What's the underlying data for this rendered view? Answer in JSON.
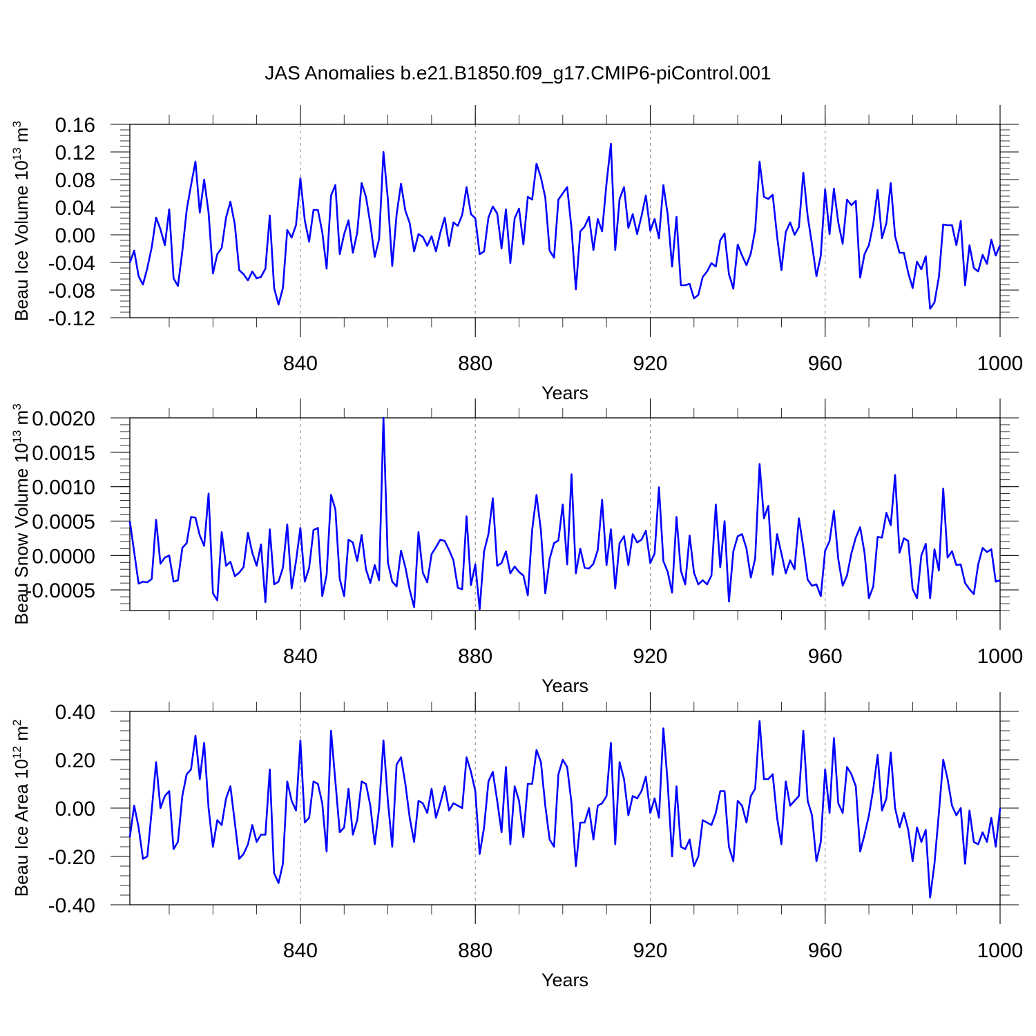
{
  "figure_title": "JAS Anomalies b.e21.B1850.f09_g17.CMIP6-piControl.001",
  "colors": {
    "line": "#0000ff",
    "axis": "#000000",
    "grid": "#808080",
    "background": "#ffffff"
  },
  "chart_data": [
    {
      "type": "line",
      "title": "JAS Anomalies b.e21.B1850.f09_g17.CMIP6-piControl.001",
      "xlabel": "Years",
      "ylabel_text": "Beau Ice Volume 10",
      "ylabel_exp": "13",
      "ylabel_unit": " m",
      "ylabel_unit_exp": "3",
      "xlim": [
        801,
        1000
      ],
      "ylim": [
        -0.12,
        0.16
      ],
      "xticks": [
        840,
        880,
        920,
        960,
        1000
      ],
      "xtick_labels": [
        "840",
        "880",
        "920",
        "960",
        "1000"
      ],
      "yticks": [
        -0.12,
        -0.08,
        -0.04,
        0.0,
        0.04,
        0.08,
        0.12,
        0.16
      ],
      "ytick_labels": [
        "-0.12",
        "-0.08",
        "-0.04",
        "0.00",
        "0.04",
        "0.08",
        "0.12",
        "0.16"
      ],
      "x_start": 801,
      "values": [
        -0.04,
        -0.023,
        -0.06,
        -0.072,
        -0.048,
        -0.018,
        0.025,
        0.008,
        -0.015,
        0.037,
        -0.063,
        -0.074,
        -0.024,
        0.036,
        0.072,
        0.106,
        0.032,
        0.08,
        0.032,
        -0.056,
        -0.028,
        -0.019,
        0.025,
        0.048,
        0.015,
        -0.051,
        -0.057,
        -0.066,
        -0.053,
        -0.063,
        -0.061,
        -0.049,
        0.028,
        -0.077,
        -0.101,
        -0.077,
        0.007,
        -0.004,
        0.014,
        0.082,
        0.021,
        -0.01,
        0.036,
        0.036,
        0.004,
        -0.049,
        0.057,
        0.072,
        -0.028,
        0.001,
        0.021,
        -0.026,
        0.003,
        0.075,
        0.055,
        0.016,
        -0.032,
        -0.006,
        0.12,
        0.051,
        -0.045,
        0.029,
        0.074,
        0.035,
        0.017,
        -0.024,
        0.001,
        -0.003,
        -0.016,
        -0.002,
        -0.024,
        0.003,
        0.025,
        -0.016,
        0.018,
        0.013,
        0.029,
        0.069,
        0.03,
        0.024,
        -0.028,
        -0.024,
        0.025,
        0.041,
        0.031,
        -0.02,
        0.037,
        -0.041,
        0.024,
        0.038,
        -0.014,
        0.055,
        0.051,
        0.103,
        0.083,
        0.054,
        -0.023,
        -0.033,
        0.051,
        0.06,
        0.069,
        0.009,
        -0.079,
        0.005,
        0.012,
        0.026,
        -0.022,
        0.023,
        0.005,
        0.075,
        0.132,
        -0.022,
        0.052,
        0.069,
        0.01,
        0.03,
        0.001,
        0.027,
        0.057,
        0.006,
        0.023,
        -0.005,
        0.072,
        0.029,
        -0.046,
        0.026,
        -0.073,
        -0.073,
        -0.071,
        -0.092,
        -0.087,
        -0.061,
        -0.053,
        -0.041,
        -0.046,
        -0.008,
        0.002,
        -0.057,
        -0.078,
        -0.014,
        -0.03,
        -0.044,
        -0.027,
        0.007,
        0.106,
        0.055,
        0.052,
        0.058,
        -0.002,
        -0.051,
        0.004,
        0.018,
        0.0,
        0.011,
        0.09,
        0.027,
        -0.014,
        -0.06,
        -0.03,
        0.066,
        0.001,
        0.067,
        0.018,
        -0.013,
        0.051,
        0.043,
        0.049,
        -0.062,
        -0.028,
        -0.015,
        0.016,
        0.065,
        -0.005,
        0.017,
        0.075,
        -0.002,
        -0.026,
        -0.026,
        -0.055,
        -0.077,
        -0.039,
        -0.05,
        -0.031,
        -0.107,
        -0.098,
        -0.061,
        0.015,
        0.014,
        0.014,
        -0.015,
        0.02,
        -0.073,
        -0.015,
        -0.048,
        -0.053,
        -0.029,
        -0.042,
        -0.007,
        -0.03,
        -0.015
      ]
    },
    {
      "type": "line",
      "title": "",
      "xlabel": "Years",
      "ylabel_text": "Beau Snow Volume 10",
      "ylabel_exp": "13",
      "ylabel_unit": " m",
      "ylabel_unit_exp": "3",
      "xlim": [
        801,
        1000
      ],
      "ylim": [
        -0.0008,
        0.002
      ],
      "xticks": [
        840,
        880,
        920,
        960,
        1000
      ],
      "xtick_labels": [
        "840",
        "880",
        "920",
        "960",
        "1000"
      ],
      "yticks": [
        -0.0005,
        0.0,
        0.0005,
        0.001,
        0.0015,
        0.002
      ],
      "ytick_labels": [
        "-0.0005",
        "0.0000",
        "0.0005",
        "0.0010",
        "0.0015",
        "0.0020"
      ],
      "x_start": 801,
      "values": [
        0.0005,
        5e-05,
        -0.00041,
        -0.00038,
        -0.00039,
        -0.00034,
        0.00052,
        -0.00012,
        -3e-05,
        0.0,
        -0.00038,
        -0.00036,
        0.00011,
        0.00018,
        0.00056,
        0.00055,
        0.00029,
        0.00014,
        0.0009,
        -0.00055,
        -0.00065,
        0.00034,
        -0.00015,
        -9e-05,
        -0.0003,
        -0.00025,
        -0.00017,
        0.00033,
        4e-05,
        -0.00015,
        0.00016,
        -0.00068,
        0.00038,
        -0.00042,
        -0.00038,
        -0.00018,
        0.00045,
        -0.00048,
        -8e-05,
        0.0004,
        -0.00038,
        -0.00018,
        0.00037,
        0.0004,
        -0.00059,
        -0.00028,
        0.00088,
        0.00067,
        -0.00034,
        -0.00059,
        0.00023,
        0.00019,
        -8e-05,
        0.0003,
        -0.0002,
        -0.0004,
        -0.00014,
        -0.00036,
        0.002,
        -0.0001,
        -0.00038,
        -0.00045,
        7e-05,
        -0.00017,
        -0.0005,
        -0.00075,
        0.00034,
        -0.00025,
        -0.00039,
        2e-05,
        0.00012,
        0.00023,
        0.00021,
        8e-05,
        -7e-05,
        -0.00047,
        -0.00049,
        0.00057,
        -0.00043,
        -0.00013,
        -0.00078,
        6e-05,
        0.00031,
        0.00083,
        -0.00015,
        -0.00011,
        6e-05,
        -0.00026,
        -0.00016,
        -0.00024,
        -0.00029,
        -0.00058,
        0.00037,
        0.00088,
        0.00036,
        -0.00055,
        -5e-05,
        0.00018,
        0.00022,
        0.00074,
        -0.00013,
        0.00118,
        -0.00026,
        0.0001,
        -0.00018,
        -0.00019,
        -0.00012,
        8e-05,
        0.00081,
        -0.00014,
        0.00038,
        -0.00048,
        0.00018,
        0.00028,
        -0.00014,
        0.00031,
        0.00019,
        0.00023,
        0.00036,
        -0.00011,
        3e-05,
        0.00099,
        -8e-05,
        -0.00024,
        -0.00054,
        0.00056,
        -0.00022,
        -0.00042,
        0.00029,
        -0.00025,
        -0.00042,
        -0.00036,
        -0.00042,
        -0.00029,
        0.00074,
        -0.00017,
        0.0005,
        -0.00067,
        6e-05,
        0.00028,
        0.00031,
        0.0001,
        -0.00032,
        -4e-05,
        0.00133,
        0.00054,
        0.00072,
        -0.00028,
        0.00031,
        3e-05,
        -0.00026,
        -7e-05,
        -0.0002,
        0.00054,
        0.00012,
        -0.00035,
        -0.00044,
        -0.00042,
        -0.00059,
        7e-05,
        0.00021,
        0.00065,
        -5e-05,
        -0.00044,
        -0.00029,
        3e-05,
        0.00026,
        0.00041,
        4e-05,
        -0.00062,
        -0.00045,
        0.00027,
        0.00026,
        0.00062,
        0.00044,
        0.00117,
        4e-05,
        0.00025,
        0.00021,
        -0.00049,
        -0.00062,
        0.0,
        0.00017,
        -0.00062,
        9e-05,
        -0.00022,
        0.00097,
        -3e-05,
        6e-05,
        -0.00014,
        -0.00013,
        -0.0004,
        -0.00049,
        -0.00056,
        -0.00013,
        0.00011,
        5e-05,
        9e-05,
        -0.00038,
        -0.00036
      ]
    },
    {
      "type": "line",
      "title": "",
      "xlabel": "Years",
      "ylabel_text": "Beau Ice Area 10",
      "ylabel_exp": "12",
      "ylabel_unit": " m",
      "ylabel_unit_exp": "2",
      "xlim": [
        801,
        1000
      ],
      "ylim": [
        -0.4,
        0.4
      ],
      "xticks": [
        840,
        880,
        920,
        960,
        1000
      ],
      "xtick_labels": [
        "840",
        "880",
        "920",
        "960",
        "1000"
      ],
      "yticks": [
        -0.4,
        -0.2,
        0.0,
        0.2,
        0.4
      ],
      "ytick_labels": [
        "-0.40",
        "-0.20",
        "0.00",
        "0.20",
        "0.40"
      ],
      "x_start": 801,
      "values": [
        -0.12,
        0.01,
        -0.08,
        -0.21,
        -0.2,
        -0.01,
        0.19,
        0.0,
        0.05,
        0.07,
        -0.17,
        -0.14,
        0.05,
        0.14,
        0.16,
        0.3,
        0.12,
        0.27,
        0.0,
        -0.16,
        -0.05,
        -0.07,
        0.04,
        0.09,
        -0.06,
        -0.21,
        -0.19,
        -0.15,
        -0.07,
        -0.14,
        -0.11,
        -0.11,
        0.16,
        -0.27,
        -0.31,
        -0.23,
        0.11,
        0.03,
        -0.01,
        0.28,
        -0.06,
        -0.04,
        0.11,
        0.1,
        0.02,
        -0.18,
        0.32,
        0.11,
        -0.1,
        -0.08,
        0.08,
        -0.11,
        -0.05,
        0.11,
        0.1,
        0.01,
        -0.15,
        0.0,
        0.28,
        0.03,
        -0.16,
        0.18,
        0.21,
        0.1,
        -0.04,
        -0.14,
        0.03,
        0.02,
        -0.02,
        0.08,
        -0.04,
        0.02,
        0.09,
        -0.01,
        0.02,
        0.01,
        0.0,
        0.21,
        0.15,
        0.07,
        -0.19,
        -0.08,
        0.11,
        0.15,
        0.03,
        -0.1,
        0.17,
        -0.15,
        0.09,
        0.03,
        -0.12,
        0.1,
        0.1,
        0.24,
        0.19,
        0.01,
        -0.13,
        -0.16,
        0.14,
        0.2,
        0.17,
        0.02,
        -0.24,
        -0.06,
        -0.06,
        0.0,
        -0.13,
        0.01,
        0.02,
        0.05,
        0.27,
        -0.15,
        0.19,
        0.12,
        -0.03,
        0.05,
        0.04,
        0.07,
        0.13,
        -0.02,
        0.04,
        -0.04,
        0.33,
        0.1,
        -0.2,
        0.09,
        -0.16,
        -0.17,
        -0.13,
        -0.24,
        -0.2,
        -0.05,
        -0.06,
        -0.07,
        -0.02,
        0.07,
        0.07,
        -0.16,
        -0.22,
        0.03,
        0.01,
        -0.06,
        0.05,
        0.08,
        0.36,
        0.12,
        0.12,
        0.14,
        -0.04,
        -0.15,
        0.11,
        0.01,
        0.03,
        0.05,
        0.32,
        0.03,
        -0.03,
        -0.22,
        -0.14,
        0.16,
        -0.02,
        0.29,
        0.02,
        -0.02,
        0.17,
        0.14,
        0.09,
        -0.18,
        -0.11,
        -0.03,
        0.08,
        0.22,
        -0.01,
        0.04,
        0.23,
        0.0,
        -0.08,
        -0.02,
        -0.09,
        -0.22,
        -0.08,
        -0.14,
        -0.09,
        -0.37,
        -0.23,
        -0.02,
        0.2,
        0.12,
        0.01,
        -0.03,
        0.0,
        -0.23,
        -0.01,
        -0.14,
        -0.15,
        -0.1,
        -0.14,
        -0.04,
        -0.16,
        0.0
      ]
    }
  ]
}
